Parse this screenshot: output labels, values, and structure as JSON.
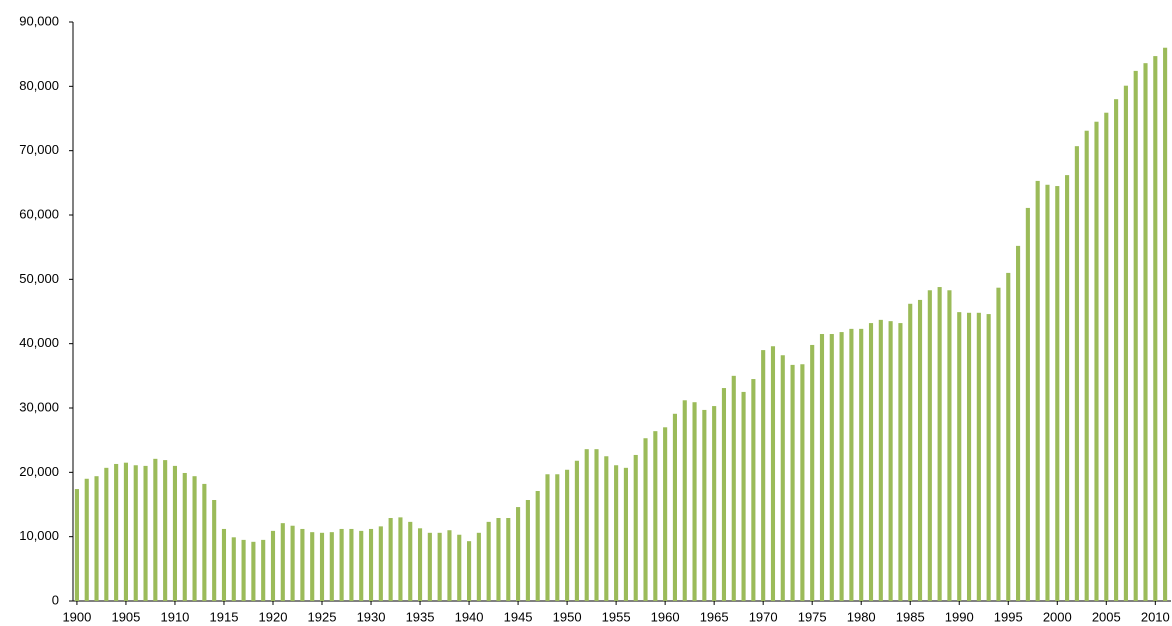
{
  "chart_data": {
    "type": "bar",
    "color": "#9bbb59",
    "x": [
      1900,
      1901,
      1902,
      1903,
      1904,
      1905,
      1906,
      1907,
      1908,
      1909,
      1910,
      1911,
      1912,
      1913,
      1914,
      1915,
      1916,
      1917,
      1918,
      1919,
      1920,
      1921,
      1922,
      1923,
      1924,
      1925,
      1926,
      1927,
      1928,
      1929,
      1930,
      1931,
      1932,
      1933,
      1934,
      1935,
      1936,
      1937,
      1938,
      1939,
      1940,
      1941,
      1942,
      1943,
      1944,
      1945,
      1946,
      1947,
      1948,
      1949,
      1950,
      1951,
      1952,
      1953,
      1954,
      1955,
      1956,
      1957,
      1958,
      1959,
      1960,
      1961,
      1962,
      1963,
      1964,
      1965,
      1966,
      1967,
      1968,
      1969,
      1970,
      1971,
      1972,
      1973,
      1974,
      1975,
      1976,
      1977,
      1978,
      1979,
      1980,
      1981,
      1982,
      1983,
      1984,
      1985,
      1986,
      1987,
      1988,
      1989,
      1990,
      1991,
      1992,
      1993,
      1994,
      1995,
      1996,
      1997,
      1998,
      1999,
      2000,
      2001,
      2002,
      2003,
      2004,
      2005,
      2006,
      2007,
      2008,
      2009,
      2010,
      2011
    ],
    "values": [
      17400,
      19000,
      19400,
      20700,
      21300,
      21500,
      21100,
      21000,
      22100,
      21900,
      21000,
      19900,
      19400,
      18200,
      15700,
      11200,
      9900,
      9500,
      9200,
      9500,
      10900,
      12100,
      11700,
      11200,
      10700,
      10600,
      10700,
      11200,
      11200,
      10900,
      11200,
      11600,
      12900,
      13000,
      12300,
      11300,
      10600,
      10600,
      11000,
      10300,
      9300,
      10600,
      12300,
      12900,
      12900,
      14600,
      15700,
      17100,
      19700,
      19700,
      20400,
      21800,
      23600,
      23600,
      22500,
      21100,
      20700,
      22700,
      25300,
      26400,
      27000,
      29100,
      31200,
      30900,
      29700,
      30300,
      33100,
      35000,
      32500,
      34500,
      39000,
      39600,
      38200,
      36700,
      36800,
      39800,
      41500,
      41500,
      41800,
      42300,
      42300,
      43200,
      43700,
      43500,
      43200,
      46200,
      46800,
      48300,
      48800,
      48300,
      44900,
      44800,
      44800,
      44600,
      48700,
      51000,
      55200,
      61100,
      65300,
      64700,
      64500,
      66200,
      70700,
      73100,
      74500,
      75900,
      78000,
      80100,
      82400,
      83600,
      84700,
      86000
    ],
    "xlim": [
      1899.6,
      2011.6
    ],
    "xticks": [
      1900,
      1905,
      1910,
      1915,
      1920,
      1925,
      1930,
      1935,
      1940,
      1945,
      1950,
      1955,
      1960,
      1965,
      1970,
      1975,
      1980,
      1985,
      1990,
      1995,
      2000,
      2005,
      2010
    ],
    "ylim": [
      0,
      90000
    ],
    "yticks": [
      0,
      {
        "value": 10000,
        "label": "10,000"
      },
      {
        "value": 20000,
        "label": "20,000"
      },
      {
        "value": 30000,
        "label": "30,000"
      },
      {
        "value": 40000,
        "label": "40,000"
      },
      {
        "value": 50000,
        "label": "50,000"
      },
      {
        "value": 60000,
        "label": "60,000"
      },
      {
        "value": 70000,
        "label": "70,000"
      },
      {
        "value": 80000,
        "label": "80,000"
      },
      {
        "value": 90000,
        "label": "90,000"
      }
    ],
    "grid": false
  }
}
